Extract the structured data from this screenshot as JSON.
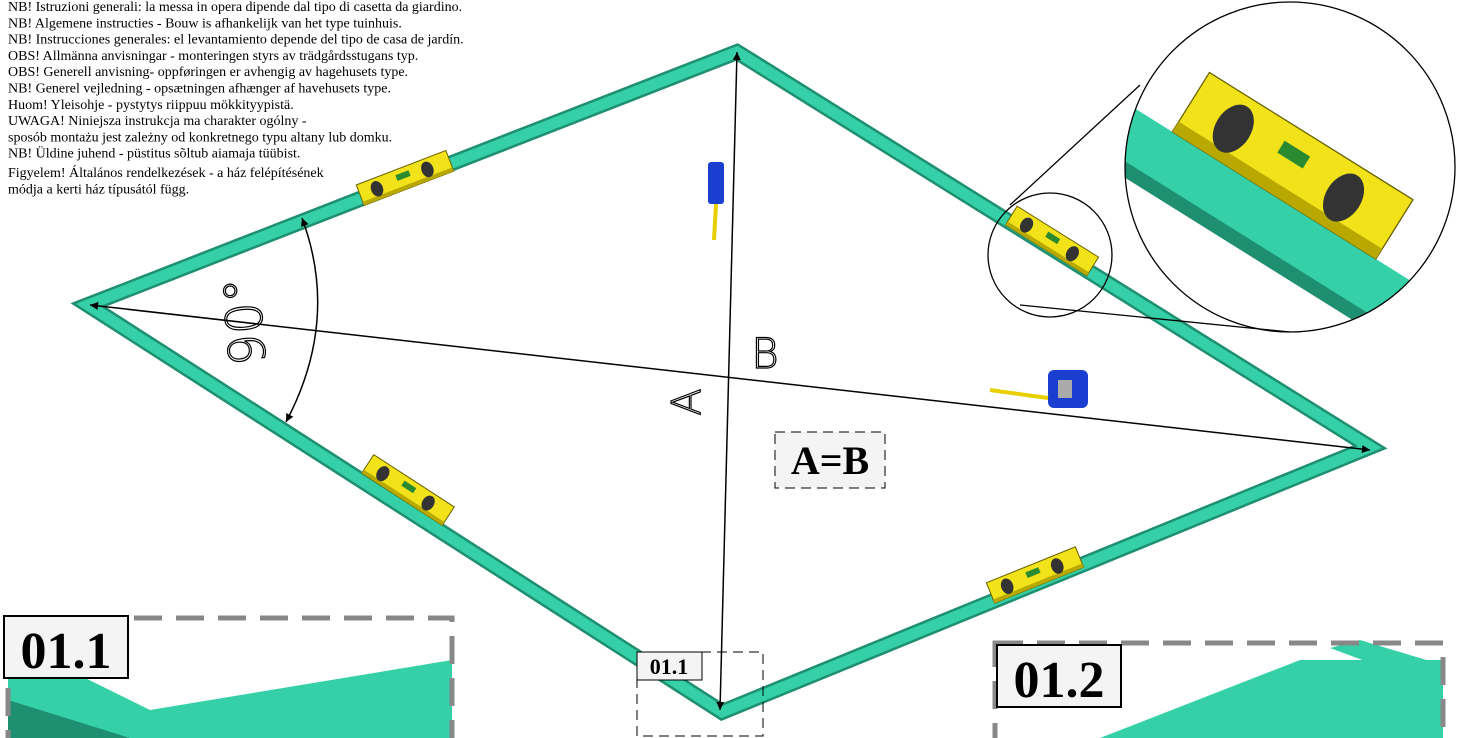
{
  "notes": [
    "NB! Istruzioni generali: la messa in opera dipende dal tipo di casetta da giardino.",
    "NB! Algemene instructies - Bouw is afhankelijk van het type tuinhuis.",
    "NB! Instrucciones generales: el levantamiento depende del tipo de casa de jardín.",
    "OBS! Allmänna anvisningar - monteringen styrs av trädgårdsstugans typ.",
    "OBS! Generell anvisning- oppføringen er avhengig av hagehusets type.",
    "NB! Generel vejledning - opsætningen afhænger af havehusets type.",
    "Huom! Yleisohje - pystytys riippuu mökkityypistä.",
    "UWAGA! Niniejsza instrukcja ma charakter ogólny -",
    "sposób montażu jest zależny od konkretnego typu altany lub domku.",
    "NB! Üldine juhend - püstitus sõltub aiamaja tüübist.",
    "Figyelem! Általános rendelkezések - a ház felépítésének",
    "módja a kerti ház típusától függ."
  ],
  "angle_label": "90°",
  "diagonal_a": "A",
  "diagonal_b": "B",
  "equation": "A=B",
  "marker": "01.1",
  "details": [
    {
      "label": "01.1"
    },
    {
      "label": "01.2"
    }
  ]
}
